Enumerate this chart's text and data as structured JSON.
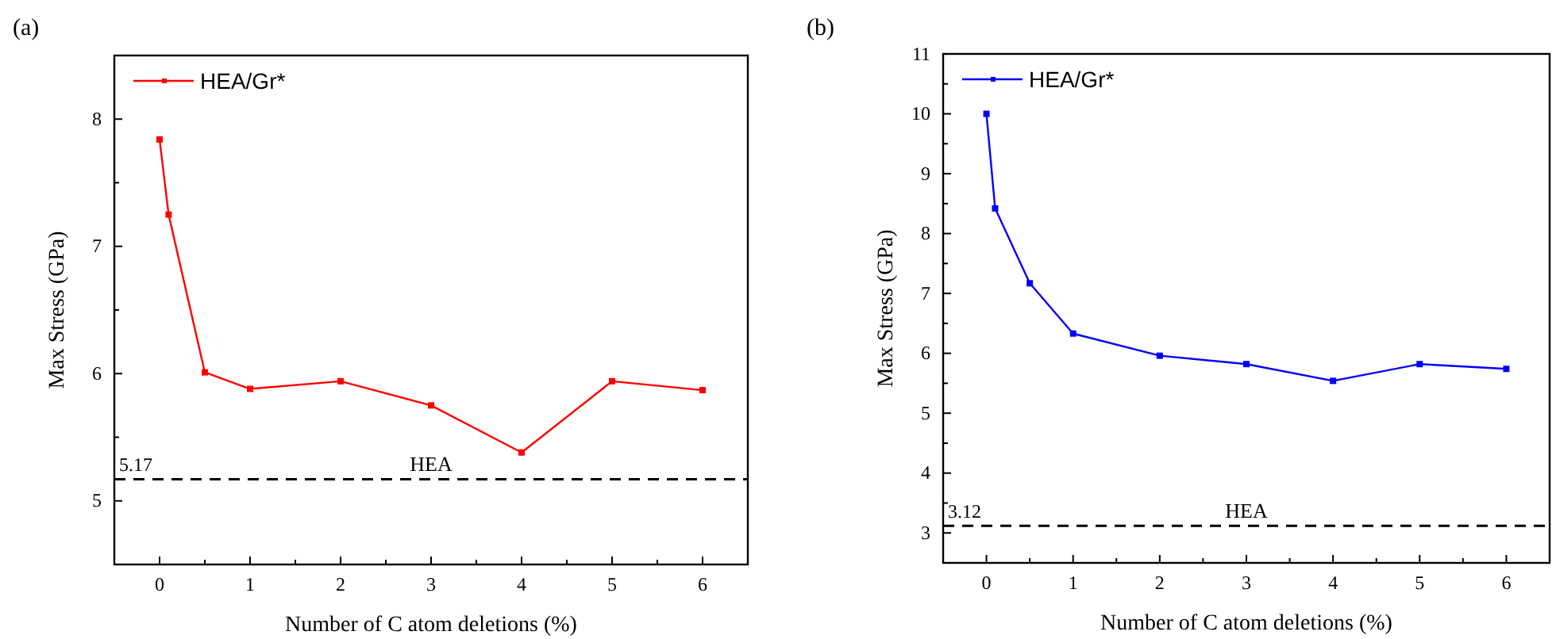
{
  "chart_data": [
    {
      "type": "line",
      "title": "(a)",
      "xlabel": "Number of C atom deletions (%)",
      "ylabel": "Max Stress (GPa)",
      "x": [
        0,
        0.1,
        0.5,
        1,
        2,
        3,
        4,
        5,
        6
      ],
      "series": [
        {
          "name": "HEA/Gr*",
          "color": "#ff0000",
          "values": [
            7.84,
            7.25,
            6.01,
            5.88,
            5.94,
            5.75,
            5.38,
            5.94,
            5.87
          ]
        }
      ],
      "xlim": [
        -0.5,
        6.5
      ],
      "xticks": [
        0,
        {
          "value": 0.5,
          "label": null
        },
        1,
        {
          "value": 1.5,
          "label": null
        },
        2,
        {
          "value": 2.5,
          "label": null
        },
        3,
        {
          "value": 3.5,
          "label": null
        },
        4,
        {
          "value": 4.5,
          "label": null
        },
        5,
        {
          "value": 5.5,
          "label": null
        },
        6
      ],
      "ylim": [
        4.5,
        8.5
      ],
      "yticks": [
        5,
        {
          "value": 5.5,
          "label": null
        },
        6,
        {
          "value": 6.5,
          "label": null
        },
        7,
        {
          "value": 7.5,
          "label": null
        },
        8
      ],
      "ref_lines": [
        {
          "axis": "y",
          "value": 5.17,
          "label": "HEA",
          "color": "#000000",
          "line_style": "dashed"
        }
      ],
      "annotations": [
        {
          "text": "5.17",
          "x": -0.5,
          "y": 5.17
        }
      ],
      "legend": "top left",
      "marker": "square",
      "line_style": "solid",
      "grid": false
    },
    {
      "type": "line",
      "title": "(b)",
      "xlabel": "Number of C atom deletions (%)",
      "ylabel": "Max Stress (GPa)",
      "x": [
        0,
        0.1,
        0.5,
        1,
        2,
        3,
        4,
        5,
        6
      ],
      "series": [
        {
          "name": "HEA/Gr*",
          "color": "#0000ff",
          "values": [
            10.0,
            8.42,
            7.17,
            6.33,
            5.96,
            5.82,
            5.54,
            5.82,
            5.74
          ]
        }
      ],
      "xlim": [
        -0.5,
        6.5
      ],
      "xticks": [
        0,
        {
          "value": 0.5,
          "label": null
        },
        1,
        {
          "value": 1.5,
          "label": null
        },
        2,
        {
          "value": 2.5,
          "label": null
        },
        3,
        {
          "value": 3.5,
          "label": null
        },
        4,
        {
          "value": 4.5,
          "label": null
        },
        5,
        {
          "value": 5.5,
          "label": null
        },
        6
      ],
      "ylim": [
        2.5,
        11
      ],
      "yticks": [
        3,
        {
          "value": 3.5,
          "label": null
        },
        4,
        {
          "value": 4.5,
          "label": null
        },
        5,
        {
          "value": 5.5,
          "label": null
        },
        6,
        {
          "value": 6.5,
          "label": null
        },
        7,
        {
          "value": 7.5,
          "label": null
        },
        8,
        {
          "value": 8.5,
          "label": null
        },
        9,
        {
          "value": 9.5,
          "label": null
        },
        10,
        {
          "value": 10.5,
          "label": null
        },
        11
      ],
      "ref_lines": [
        {
          "axis": "y",
          "value": 3.12,
          "label": "HEA",
          "color": "#000000",
          "line_style": "dashed"
        }
      ],
      "annotations": [
        {
          "text": "3.12",
          "x": -0.5,
          "y": 3.12
        }
      ],
      "legend": "top left",
      "marker": "square",
      "line_style": "solid",
      "grid": false
    }
  ]
}
